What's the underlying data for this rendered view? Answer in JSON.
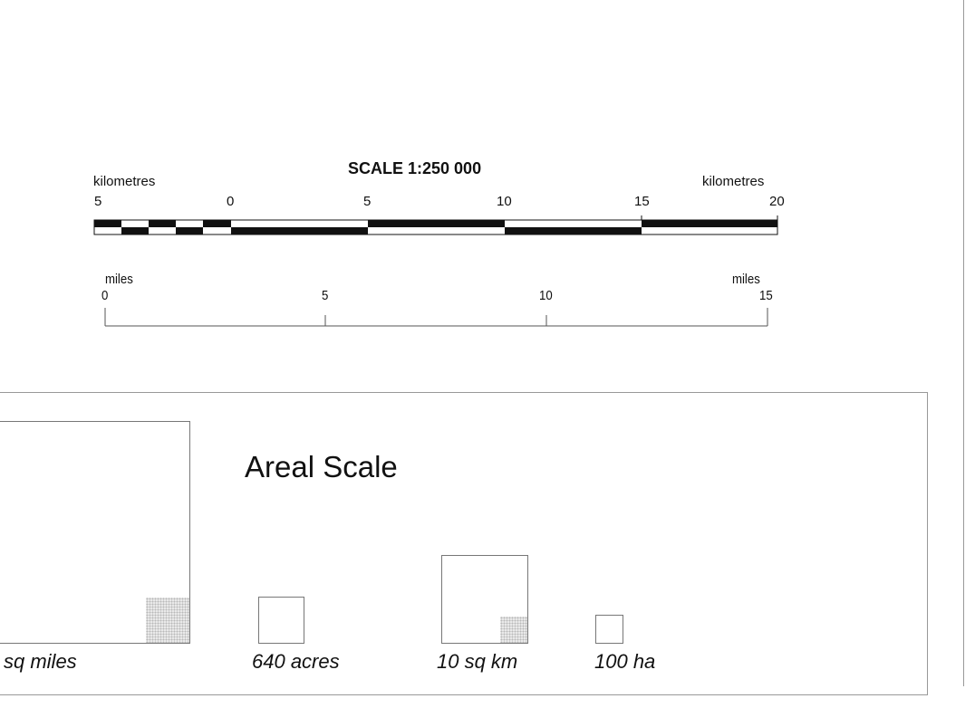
{
  "linear_scale": {
    "title": "SCALE 1:250 000",
    "km_unit_left": "kilometres",
    "km_unit_right": "kilometres",
    "km_ticks": [
      "5",
      "0",
      "5",
      "10",
      "15",
      "20"
    ],
    "miles_unit_left": "miles",
    "miles_unit_right": "miles",
    "miles_ticks": [
      "0",
      "5",
      "10",
      "15"
    ]
  },
  "areal_scale": {
    "title": "Areal Scale",
    "squares": [
      {
        "label": "sq miles"
      },
      {
        "label": "640 acres"
      },
      {
        "label": "10 sq km"
      },
      {
        "label": "100 ha"
      }
    ]
  },
  "colors": {
    "ink": "#111111",
    "frame": "#777777",
    "stipple": "#c8c8c8"
  }
}
